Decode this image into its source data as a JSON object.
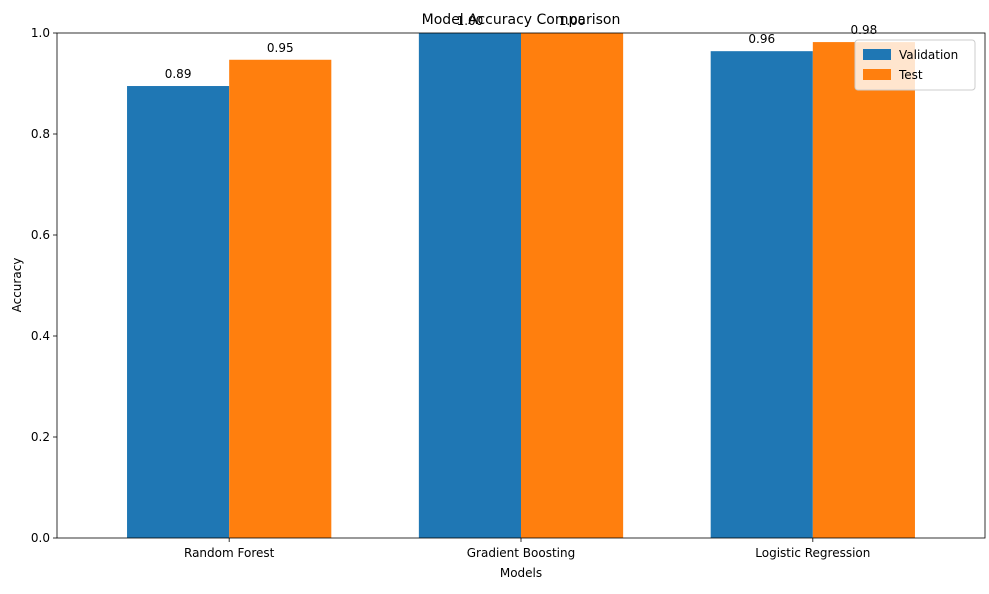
{
  "chart_data": {
    "type": "bar",
    "title": "Model Accuracy Comparison",
    "xlabel": "Models",
    "ylabel": "Accuracy",
    "ylim": [
      0,
      1.0
    ],
    "yticks": [
      "0.0",
      "0.2",
      "0.4",
      "0.6",
      "0.8",
      "1.0"
    ],
    "grid": false,
    "legend": "top-right",
    "categories": [
      "Random Forest",
      "Gradient Boosting",
      "Logistic Regression"
    ],
    "series": [
      {
        "name": "Validation",
        "color": "#1f77b4",
        "values": [
          0.895,
          1.0,
          0.964
        ],
        "labels": [
          "0.89",
          "1.00",
          "0.96"
        ]
      },
      {
        "name": "Test",
        "color": "#ff7f0e",
        "values": [
          0.947,
          1.0,
          0.982
        ],
        "labels": [
          "0.95",
          "1.00",
          "0.98"
        ]
      }
    ]
  }
}
